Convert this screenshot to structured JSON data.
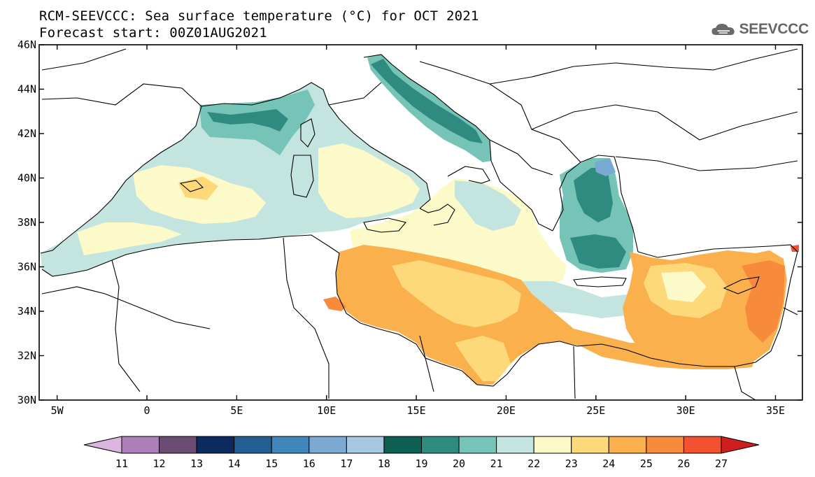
{
  "title": {
    "line1": "RCM-SEEVCCC: Sea surface temperature (°C) for OCT 2021",
    "line2": "Forecast start: 00Z01AUG2021"
  },
  "logo": {
    "icon": "cloud-icon",
    "text": "SEEVCCC"
  },
  "map": {
    "lat_range": [
      30,
      46
    ],
    "lon_range": [
      -6,
      36.5
    ],
    "lat_ticks": [
      "46N",
      "44N",
      "42N",
      "40N",
      "38N",
      "36N",
      "34N",
      "32N",
      "30N"
    ],
    "lon_ticks": [
      "5W",
      "0",
      "5E",
      "10E",
      "15E",
      "20E",
      "25E",
      "30E",
      "35E"
    ]
  },
  "colorbar": {
    "labels": [
      "11",
      "12",
      "13",
      "14",
      "15",
      "16",
      "17",
      "18",
      "19",
      "20",
      "21",
      "22",
      "23",
      "24",
      "25",
      "26",
      "27"
    ],
    "colors": [
      "#dcb6e0",
      "#ab80b8",
      "#6b4c73",
      "#0d2a5e",
      "#245f93",
      "#3f86bd",
      "#7aa9d1",
      "#a6c8e0",
      "#0d5f52",
      "#2f8b80",
      "#76c4b7",
      "#c3e4df",
      "#fbfac8",
      "#fdd97a",
      "#fbb04e",
      "#f88b3b",
      "#f45130",
      "#cf1e1e"
    ]
  }
}
